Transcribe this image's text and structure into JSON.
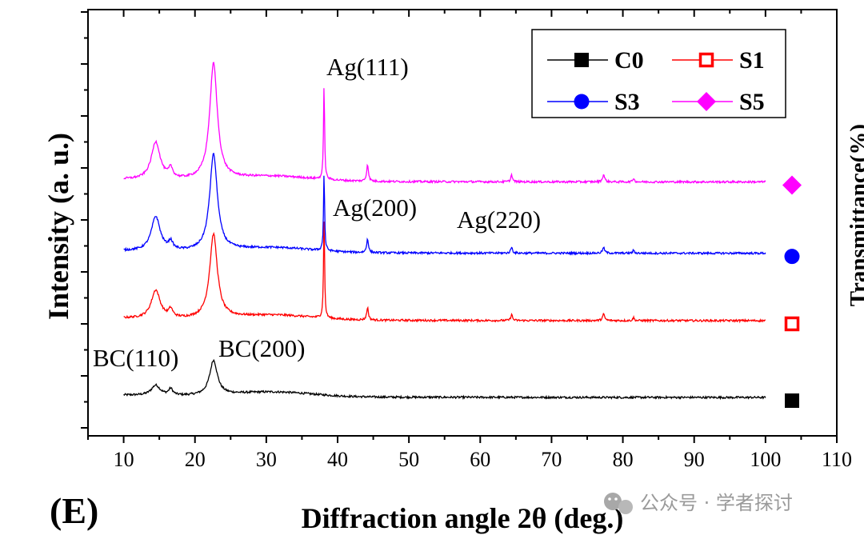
{
  "chart_data": {
    "type": "line",
    "panel_label": "(E)",
    "xlabel": "Diffraction angle 2θ (deg.)",
    "ylabel": "Intensity (a. u.)",
    "right_axis_label_partial": "Transmittance(%)",
    "xlim": [
      5,
      110
    ],
    "x_ticks": [
      10,
      20,
      30,
      40,
      50,
      60,
      70,
      80,
      90,
      100,
      110
    ],
    "y_ticks_labeled": false,
    "series": [
      {
        "name": "C0",
        "color": "#000000",
        "marker": "filled-square",
        "baseline": 0,
        "peaks": [
          [
            14.5,
            13
          ],
          [
            16.6,
            8
          ],
          [
            22.6,
            44
          ]
        ]
      },
      {
        "name": "S1",
        "color": "#ff0000",
        "marker": "open-square",
        "baseline": 98,
        "peaks": [
          [
            14.5,
            36
          ],
          [
            16.6,
            10
          ],
          [
            22.6,
            107
          ],
          [
            38.1,
            130
          ],
          [
            44.2,
            16
          ],
          [
            64.4,
            8
          ],
          [
            77.3,
            8
          ],
          [
            81.5,
            4
          ]
        ]
      },
      {
        "name": "S3",
        "color": "#0000ff",
        "marker": "filled-circle",
        "baseline": 184,
        "peaks": [
          [
            14.5,
            44
          ],
          [
            16.6,
            10
          ],
          [
            22.6,
            123
          ],
          [
            38.1,
            100
          ],
          [
            44.2,
            18
          ],
          [
            64.4,
            8
          ],
          [
            77.3,
            7
          ],
          [
            81.5,
            4
          ]
        ]
      },
      {
        "name": "S5",
        "color": "#ff00ff",
        "marker": "filled-diamond",
        "baseline": 275,
        "peaks": [
          [
            14.5,
            48
          ],
          [
            16.6,
            12
          ],
          [
            22.6,
            148
          ],
          [
            38.1,
            123
          ],
          [
            44.2,
            22
          ],
          [
            64.4,
            9
          ],
          [
            77.3,
            9
          ],
          [
            81.5,
            5
          ]
        ]
      }
    ],
    "annotations": [
      {
        "text": "Ag(111)",
        "x": 38.1
      },
      {
        "text": "Ag(200)",
        "x": 44.2
      },
      {
        "text": "Ag(220)",
        "x": 64.4
      },
      {
        "text": "BC(110)",
        "x": 14.5
      },
      {
        "text": "BC(200)",
        "x": 22.6
      }
    ],
    "legend": {
      "position": "top-right",
      "entries": [
        "C0",
        "S1",
        "S3",
        "S5"
      ]
    }
  },
  "watermark": {
    "text": "公众号 · 学者探讨",
    "icon": "wechat-icon"
  }
}
